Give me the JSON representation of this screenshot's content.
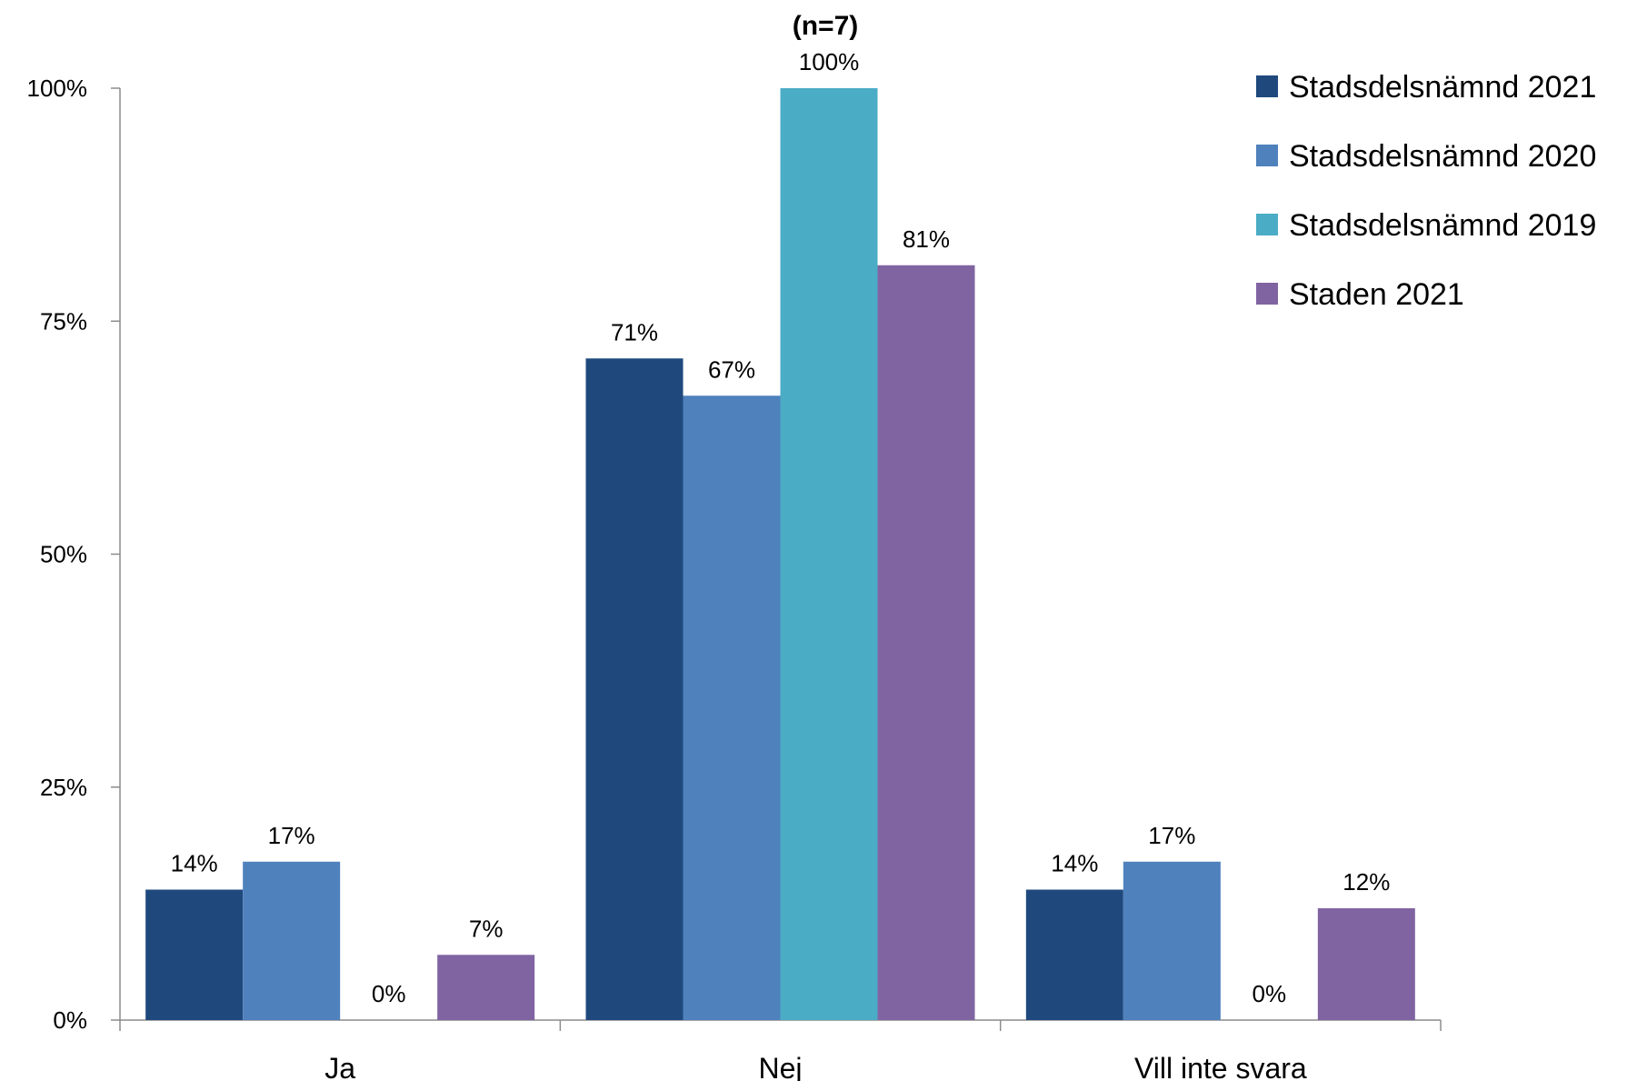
{
  "chart_data": {
    "type": "bar",
    "title": "(n=7)",
    "categories": [
      "Ja",
      "Nej",
      "Vill inte svara"
    ],
    "ylim": [
      0,
      100
    ],
    "yticks": [
      "0%",
      "25%",
      "50%",
      "75%",
      "100%"
    ],
    "ytick_values": [
      0,
      25,
      50,
      75,
      100
    ],
    "grid": false,
    "legend_position": "top-right",
    "series": [
      {
        "name": "Stadsdelsnämnd 2021",
        "color": "#1F497D",
        "values": [
          14,
          71,
          14
        ],
        "labels": [
          "14%",
          "71%",
          "14%"
        ]
      },
      {
        "name": "Stadsdelsnämnd 2020",
        "color": "#4F81BD",
        "values": [
          17,
          67,
          17
        ],
        "labels": [
          "17%",
          "67%",
          "17%"
        ]
      },
      {
        "name": "Stadsdelsnämnd 2019",
        "color": "#4BACC6",
        "values": [
          0,
          100,
          0
        ],
        "labels": [
          "0%",
          "100%",
          "0%"
        ]
      },
      {
        "name": "Staden 2021",
        "color": "#8064A2",
        "values": [
          7,
          81,
          12
        ],
        "labels": [
          "7%",
          "81%",
          "12%"
        ]
      }
    ]
  }
}
